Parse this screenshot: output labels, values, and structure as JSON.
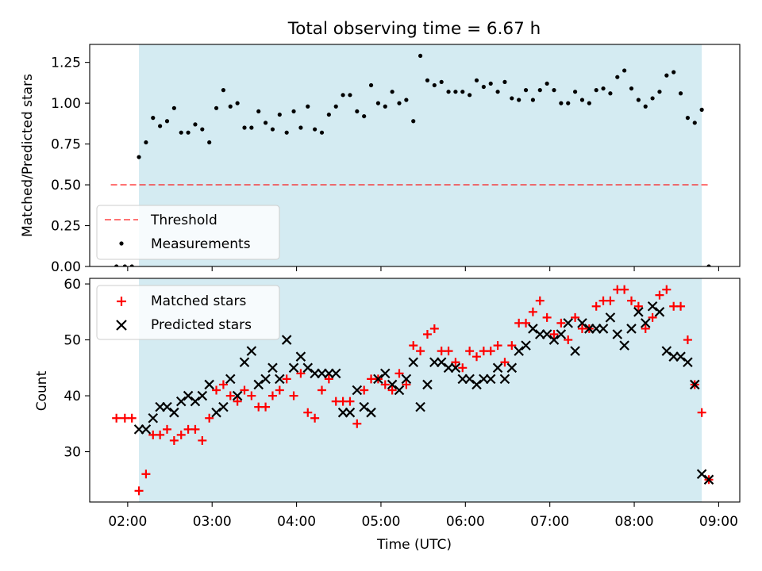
{
  "chart_data": [
    {
      "type": "scatter",
      "panel": "top",
      "title": "Total observing time = 6.67 h",
      "ylabel": "Matched/Predicted stars",
      "ylim": [
        0,
        1.36
      ],
      "xlim": [
        "01:33",
        "09:15"
      ],
      "yticks": [
        0.0,
        0.25,
        0.5,
        0.75,
        1.0,
        1.25
      ],
      "ytick_labels": [
        "0.00",
        "0.25",
        "0.50",
        "0.75",
        "1.00",
        "1.25"
      ],
      "shaded_interval": [
        "02:08",
        "08:48"
      ],
      "shade_color": "#add8e6",
      "threshold": {
        "name": "Threshold",
        "y": 0.5,
        "x_range": [
          "01:48",
          "08:53"
        ],
        "color": "#ff0000"
      },
      "legend": {
        "position": "lower-left",
        "entries": [
          "Threshold",
          "Measurements"
        ]
      },
      "series": [
        {
          "name": "Measurements",
          "marker": "dot",
          "color": "#000000",
          "x": [
            "01:52",
            "01:58",
            "02:03",
            "02:08",
            "02:13",
            "02:18",
            "02:23",
            "02:28",
            "02:33",
            "02:38",
            "02:43",
            "02:48",
            "02:53",
            "02:58",
            "03:03",
            "03:08",
            "03:13",
            "03:18",
            "03:23",
            "03:28",
            "03:33",
            "03:38",
            "03:43",
            "03:48",
            "03:53",
            "03:58",
            "04:03",
            "04:08",
            "04:13",
            "04:18",
            "04:23",
            "04:28",
            "04:33",
            "04:38",
            "04:43",
            "04:48",
            "04:53",
            "04:58",
            "05:03",
            "05:08",
            "05:13",
            "05:18",
            "05:23",
            "05:28",
            "05:33",
            "05:38",
            "05:43",
            "05:48",
            "05:53",
            "05:58",
            "06:03",
            "06:08",
            "06:13",
            "06:18",
            "06:23",
            "06:28",
            "06:33",
            "06:38",
            "06:43",
            "06:48",
            "06:53",
            "06:58",
            "07:03",
            "07:08",
            "07:13",
            "07:18",
            "07:23",
            "07:28",
            "07:33",
            "07:38",
            "07:43",
            "07:48",
            "07:53",
            "07:58",
            "08:03",
            "08:08",
            "08:13",
            "08:18",
            "08:23",
            "08:28",
            "08:33",
            "08:38",
            "08:43",
            "08:48",
            "08:53"
          ],
          "y": [
            0.0,
            0.0,
            0.0,
            0.67,
            0.76,
            0.91,
            0.86,
            0.89,
            0.97,
            0.82,
            0.82,
            0.87,
            0.84,
            0.76,
            0.97,
            1.08,
            0.98,
            1.0,
            0.85,
            0.85,
            0.95,
            0.88,
            0.84,
            0.93,
            0.82,
            0.95,
            0.85,
            0.98,
            0.84,
            0.82,
            0.93,
            0.98,
            1.05,
            1.05,
            0.95,
            0.92,
            1.11,
            1.0,
            0.98,
            1.07,
            1.0,
            1.02,
            0.89,
            1.29,
            1.14,
            1.11,
            1.13,
            1.07,
            1.07,
            1.07,
            1.05,
            1.14,
            1.1,
            1.12,
            1.07,
            1.13,
            1.03,
            1.02,
            1.08,
            1.02,
            1.08,
            1.12,
            1.08,
            1.0,
            1.0,
            1.07,
            1.02,
            1.0,
            1.08,
            1.09,
            1.06,
            1.16,
            1.2,
            1.09,
            1.02,
            0.98,
            1.03,
            1.07,
            1.17,
            1.19,
            1.06,
            0.91,
            0.88,
            0.96,
            0.0
          ]
        }
      ]
    },
    {
      "type": "scatter",
      "panel": "bottom",
      "xlabel": "Time (UTC)",
      "ylabel": "Count",
      "ylim": [
        21,
        61
      ],
      "xlim": [
        "01:33",
        "09:15"
      ],
      "xticks": [
        "02:00",
        "03:00",
        "04:00",
        "05:00",
        "06:00",
        "07:00",
        "08:00",
        "09:00"
      ],
      "yticks": [
        30,
        40,
        50,
        60
      ],
      "shaded_interval": [
        "02:08",
        "08:48"
      ],
      "shade_color": "#add8e6",
      "legend": {
        "position": "top-left",
        "entries": [
          "Matched stars",
          "Predicted stars"
        ]
      },
      "series": [
        {
          "name": "Matched stars",
          "marker": "plus",
          "color": "#ff0000",
          "x": [
            "01:52",
            "01:58",
            "02:03",
            "02:08",
            "02:13",
            "02:18",
            "02:23",
            "02:28",
            "02:33",
            "02:38",
            "02:43",
            "02:48",
            "02:53",
            "02:58",
            "03:03",
            "03:08",
            "03:13",
            "03:18",
            "03:23",
            "03:28",
            "03:33",
            "03:38",
            "03:43",
            "03:48",
            "03:53",
            "03:58",
            "04:03",
            "04:08",
            "04:13",
            "04:18",
            "04:23",
            "04:28",
            "04:33",
            "04:38",
            "04:43",
            "04:48",
            "04:53",
            "04:58",
            "05:03",
            "05:08",
            "05:13",
            "05:18",
            "05:23",
            "05:28",
            "05:33",
            "05:38",
            "05:43",
            "05:48",
            "05:53",
            "05:58",
            "06:03",
            "06:08",
            "06:13",
            "06:18",
            "06:23",
            "06:28",
            "06:33",
            "06:38",
            "06:43",
            "06:48",
            "06:53",
            "06:58",
            "07:03",
            "07:08",
            "07:13",
            "07:18",
            "07:23",
            "07:28",
            "07:33",
            "07:38",
            "07:43",
            "07:48",
            "07:53",
            "07:58",
            "08:03",
            "08:08",
            "08:13",
            "08:18",
            "08:23",
            "08:28",
            "08:33",
            "08:38",
            "08:43",
            "08:48",
            "08:53"
          ],
          "y": [
            36,
            36,
            36,
            23,
            26,
            33,
            33,
            34,
            32,
            33,
            34,
            34,
            32,
            36,
            41,
            42,
            40,
            39,
            41,
            40,
            38,
            38,
            40,
            41,
            43,
            40,
            44,
            37,
            36,
            41,
            43,
            39,
            39,
            39,
            35,
            41,
            43,
            43,
            42,
            41,
            44,
            42,
            49,
            48,
            51,
            52,
            48,
            48,
            46,
            45,
            48,
            47,
            48,
            48,
            49,
            46,
            49,
            53,
            53,
            55,
            57,
            54,
            51,
            53,
            50,
            54,
            52,
            52,
            56,
            57,
            57,
            59,
            59,
            57,
            56,
            52,
            54,
            58,
            59,
            56,
            56,
            50,
            42,
            37,
            25
          ]
        },
        {
          "name": "Predicted stars",
          "marker": "x",
          "color": "#000000",
          "x": [
            "02:08",
            "02:13",
            "02:18",
            "02:23",
            "02:28",
            "02:33",
            "02:38",
            "02:43",
            "02:48",
            "02:53",
            "02:58",
            "03:03",
            "03:08",
            "03:13",
            "03:18",
            "03:23",
            "03:28",
            "03:33",
            "03:38",
            "03:43",
            "03:48",
            "03:53",
            "03:58",
            "04:03",
            "04:08",
            "04:13",
            "04:18",
            "04:23",
            "04:28",
            "04:33",
            "04:38",
            "04:43",
            "04:48",
            "04:53",
            "04:58",
            "05:03",
            "05:08",
            "05:13",
            "05:18",
            "05:23",
            "05:28",
            "05:33",
            "05:38",
            "05:43",
            "05:48",
            "05:53",
            "05:58",
            "06:03",
            "06:08",
            "06:13",
            "06:18",
            "06:23",
            "06:28",
            "06:33",
            "06:38",
            "06:43",
            "06:48",
            "06:53",
            "06:58",
            "07:03",
            "07:08",
            "07:13",
            "07:18",
            "07:23",
            "07:28",
            "07:33",
            "07:38",
            "07:43",
            "07:48",
            "07:53",
            "07:58",
            "08:03",
            "08:08",
            "08:13",
            "08:18",
            "08:23",
            "08:28",
            "08:33",
            "08:38",
            "08:43",
            "08:48",
            "08:53"
          ],
          "y": [
            34,
            34,
            36,
            38,
            38,
            37,
            39,
            40,
            39,
            40,
            42,
            37,
            38,
            43,
            40,
            46,
            48,
            42,
            43,
            45,
            43,
            50,
            45,
            47,
            45,
            44,
            44,
            44,
            44,
            37,
            37,
            41,
            38,
            37,
            43,
            44,
            42,
            41,
            43,
            46,
            38,
            42,
            46,
            46,
            45,
            45,
            43,
            43,
            42,
            43,
            43,
            45,
            43,
            45,
            48,
            49,
            52,
            51,
            51,
            50,
            51,
            53,
            48,
            53,
            52,
            52,
            52,
            54,
            51,
            49,
            52,
            55,
            53,
            56,
            55,
            48,
            47,
            47,
            46,
            42,
            26,
            25
          ]
        }
      ]
    }
  ]
}
